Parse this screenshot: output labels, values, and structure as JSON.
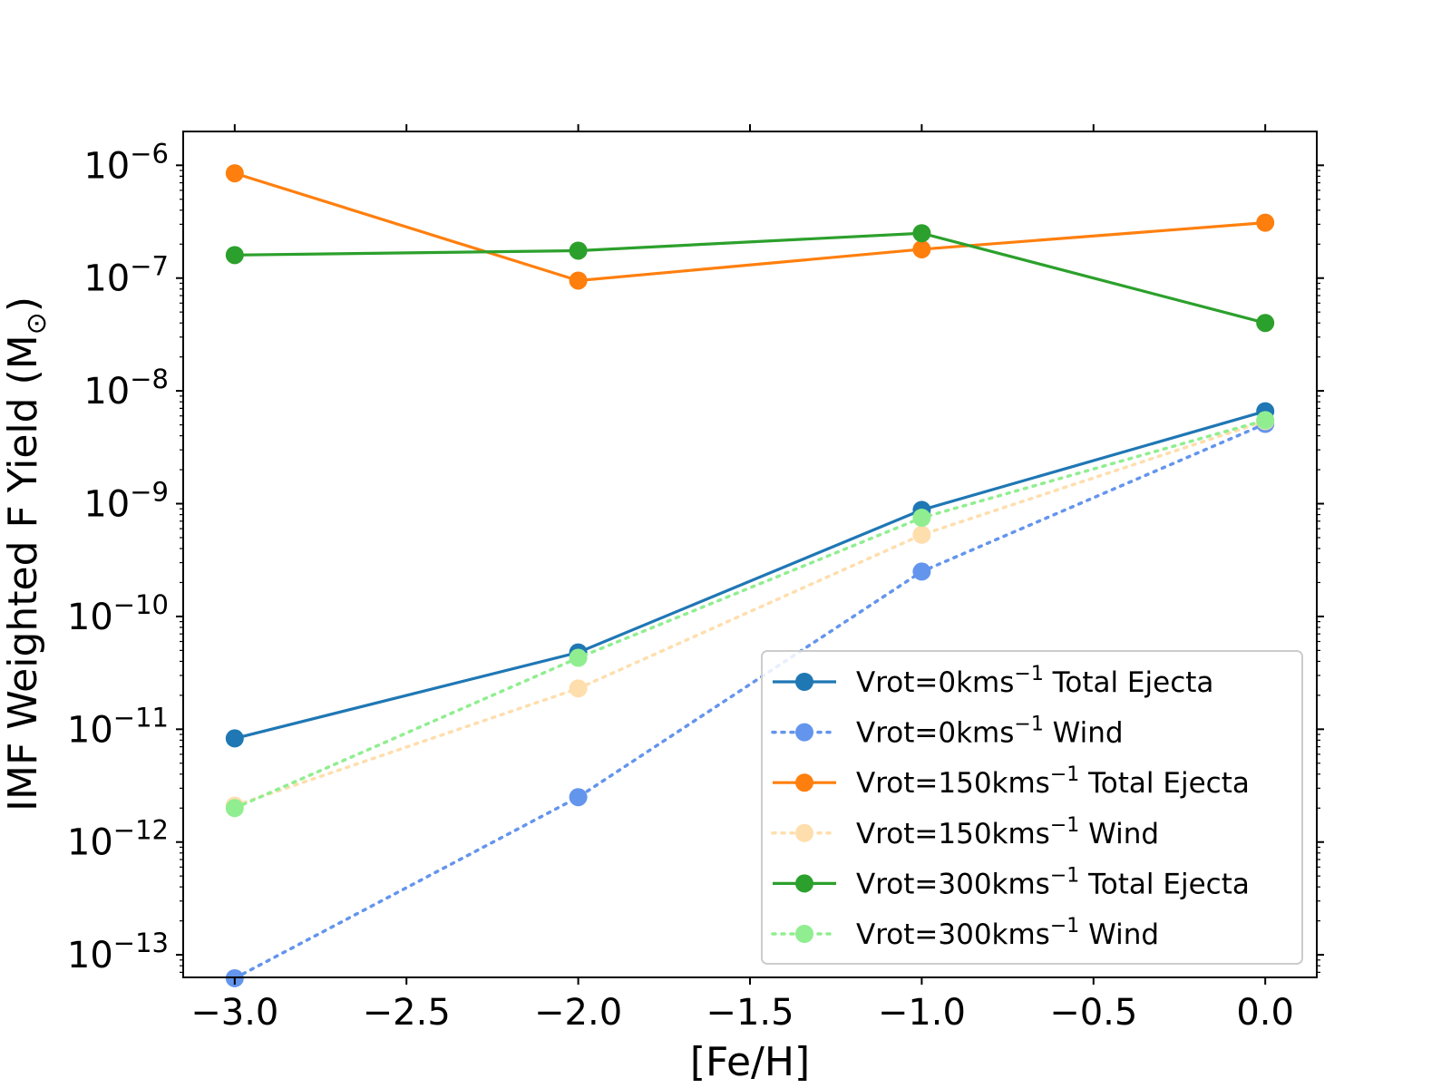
{
  "chart_data": {
    "type": "line",
    "title": "",
    "xlabel": "[Fe/H]",
    "ylabel": "IMF Weighted F Yield (M",
    "ylabel_sub": "⊙",
    "ylabel_close": ")",
    "yscale": "log",
    "xlim": [
      -3.15,
      0.15
    ],
    "ylim_exp": [
      -13.2,
      -5.7
    ],
    "x_ticks": [
      -3.0,
      -2.5,
      -2.0,
      -1.5,
      -1.0,
      -0.5,
      0.0
    ],
    "x_tick_labels": [
      "−3.0",
      "−2.5",
      "−2.0",
      "−1.5",
      "−1.0",
      "−0.5",
      "0.0"
    ],
    "y_tick_exponents": [
      -6,
      -7,
      -8,
      -9,
      -10,
      -11,
      -12,
      -13
    ],
    "y_tick_labels": [
      {
        "base": "10",
        "exp": "−6"
      },
      {
        "base": "10",
        "exp": "−7"
      },
      {
        "base": "10",
        "exp": "−8"
      },
      {
        "base": "10",
        "exp": "−9"
      },
      {
        "base": "10",
        "exp": "−10"
      },
      {
        "base": "10",
        "exp": "−11"
      },
      {
        "base": "10",
        "exp": "−12"
      },
      {
        "base": "10",
        "exp": "−13"
      }
    ],
    "x": [
      -3.0,
      -2.0,
      -1.0,
      0.0
    ],
    "series": [
      {
        "id": "v0-total",
        "name_prefix": "Vrot=0kms",
        "name_sup": "−1",
        "name_suffix": " Total Ejecta",
        "color": "#1f77b4",
        "style": "solid",
        "values": [
          8.3e-12,
          4.8e-11,
          8.8e-10,
          6.6e-09
        ]
      },
      {
        "id": "v0-wind",
        "name_prefix": "Vrot=0kms",
        "name_sup": "−1",
        "name_suffix": " Wind",
        "color": "#6495ed",
        "style": "dotted",
        "values": [
          6.2e-14,
          2.5e-12,
          2.5e-10,
          5.1e-09
        ]
      },
      {
        "id": "v150-total",
        "name_prefix": "Vrot=150kms",
        "name_sup": "−1",
        "name_suffix": " Total Ejecta",
        "color": "#ff7f0e",
        "style": "solid",
        "values": [
          8.5e-07,
          9.5e-08,
          1.8e-07,
          3.1e-07
        ]
      },
      {
        "id": "v150-wind",
        "name_prefix": "Vrot=150kms",
        "name_sup": "−1",
        "name_suffix": " Wind",
        "color": "#ffdead",
        "style": "dotted",
        "values": [
          2.1e-12,
          2.3e-11,
          5.3e-10,
          5.4e-09
        ]
      },
      {
        "id": "v300-total",
        "name_prefix": "Vrot=300kms",
        "name_sup": "−1",
        "name_suffix": " Total Ejecta",
        "color": "#2ca02c",
        "style": "solid",
        "values": [
          1.6e-07,
          1.75e-07,
          2.5e-07,
          4e-08
        ]
      },
      {
        "id": "v300-wind",
        "name_prefix": "Vrot=300kms",
        "name_sup": "−1",
        "name_suffix": " Wind",
        "color": "#90ee90",
        "style": "dotted",
        "values": [
          2e-12,
          4.3e-11,
          7.5e-10,
          5.5e-09
        ]
      }
    ],
    "legend_position": "lower-right",
    "grid": false
  }
}
